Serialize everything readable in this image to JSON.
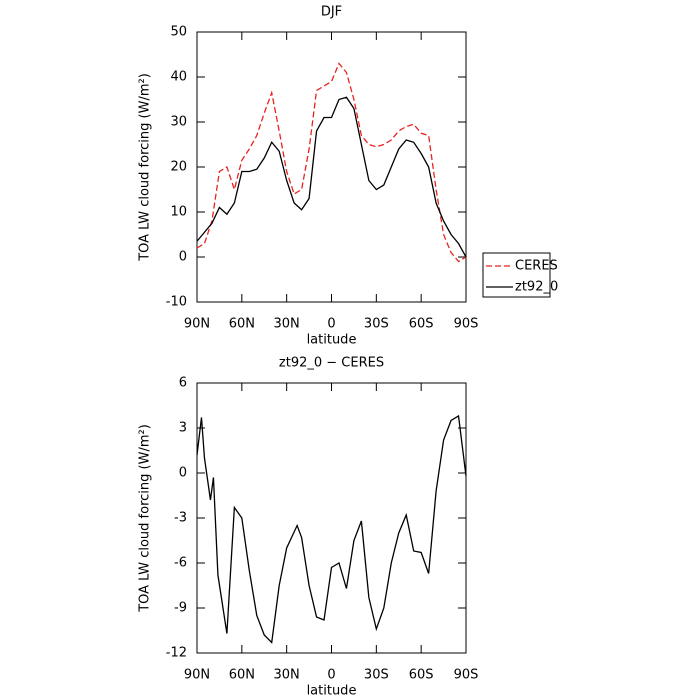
{
  "chart_data": [
    {
      "type": "line",
      "title": "DJF",
      "xlabel": "latitude",
      "ylabel": "TOA LW cloud forcing (W/m²)",
      "x": [
        90,
        85,
        80,
        75,
        70,
        65,
        60,
        55,
        50,
        45,
        40,
        35,
        30,
        25,
        20,
        15,
        10,
        5,
        0,
        -5,
        -10,
        -15,
        -20,
        -25,
        -30,
        -35,
        -40,
        -45,
        -50,
        -55,
        -60,
        -65,
        -70,
        -75,
        -80,
        -85,
        -90
      ],
      "series": [
        {
          "name": "CERES",
          "color": "#e8231f",
          "style": "dashed",
          "values": [
            2,
            3,
            8,
            19,
            20,
            15,
            21.5,
            24,
            27,
            32,
            36.5,
            28,
            19,
            14,
            15,
            24,
            37,
            38,
            39,
            43,
            41,
            35,
            27,
            25,
            24.5,
            25,
            26,
            28,
            29,
            29.5,
            27.5,
            27,
            15,
            5,
            1,
            -1,
            0
          ]
        },
        {
          "name": "zt92_0",
          "color": "#000000",
          "style": "solid",
          "values": [
            3.5,
            5.5,
            7.5,
            11,
            9.5,
            12,
            19,
            19,
            19.5,
            22,
            25.5,
            23.5,
            17,
            12,
            10.5,
            13,
            28,
            31,
            31,
            35,
            35.5,
            33,
            25,
            17,
            15,
            16,
            20,
            24,
            26,
            25.5,
            23,
            20,
            12,
            8,
            5,
            3,
            0
          ]
        }
      ],
      "xlim": [
        90,
        -90
      ],
      "xticks": [
        {
          "value": 90,
          "label": "90N"
        },
        {
          "value": 60,
          "label": "60N"
        },
        {
          "value": 30,
          "label": "30N"
        },
        0,
        {
          "value": -30,
          "label": "30S"
        },
        {
          "value": -60,
          "label": "60S"
        },
        {
          "value": -90,
          "label": "90S"
        }
      ],
      "ylim": [
        -10,
        50
      ],
      "yticks": [
        -10,
        0,
        10,
        20,
        30,
        40,
        50
      ],
      "legend": "right"
    },
    {
      "type": "line",
      "title": "zt92_0 − CERES",
      "xlabel": "latitude",
      "ylabel": "TOA LW cloud forcing (W/m²)",
      "x": [
        90,
        87,
        85,
        81,
        79,
        76,
        70,
        65,
        60,
        55,
        50,
        45,
        40,
        35,
        30,
        23,
        20,
        15,
        10,
        5,
        0,
        -5,
        -10,
        -15,
        -20,
        -25,
        -30,
        -35,
        -40,
        -45,
        -50,
        -55,
        -60,
        -65,
        -70,
        -75,
        -80,
        -85,
        -90
      ],
      "color": "#000000",
      "values": [
        1.2,
        3.7,
        1,
        -1.8,
        -0.3,
        -6.8,
        -10.7,
        -2.3,
        -3,
        -6.5,
        -9.5,
        -10.8,
        -11.3,
        -7.5,
        -5,
        -3.5,
        -4.3,
        -7.5,
        -9.6,
        -9.8,
        -6.3,
        -6,
        -7.7,
        -4.5,
        -3.2,
        -8.3,
        -10.4,
        -9,
        -6,
        -4,
        -2.8,
        -5.2,
        -5.3,
        -6.7,
        -1.2,
        2.2,
        3.5,
        3.8,
        -0.2
      ],
      "xlim": [
        90,
        -90
      ],
      "xticks": [
        {
          "value": 90,
          "label": "90N"
        },
        {
          "value": 60,
          "label": "60N"
        },
        {
          "value": 30,
          "label": "30N"
        },
        0,
        {
          "value": -30,
          "label": "30S"
        },
        {
          "value": -60,
          "label": "60S"
        },
        {
          "value": -90,
          "label": "90S"
        }
      ],
      "ylim": [
        -12,
        6
      ],
      "yticks": [
        -12,
        -9,
        -6,
        -3,
        0,
        3,
        6
      ]
    }
  ]
}
